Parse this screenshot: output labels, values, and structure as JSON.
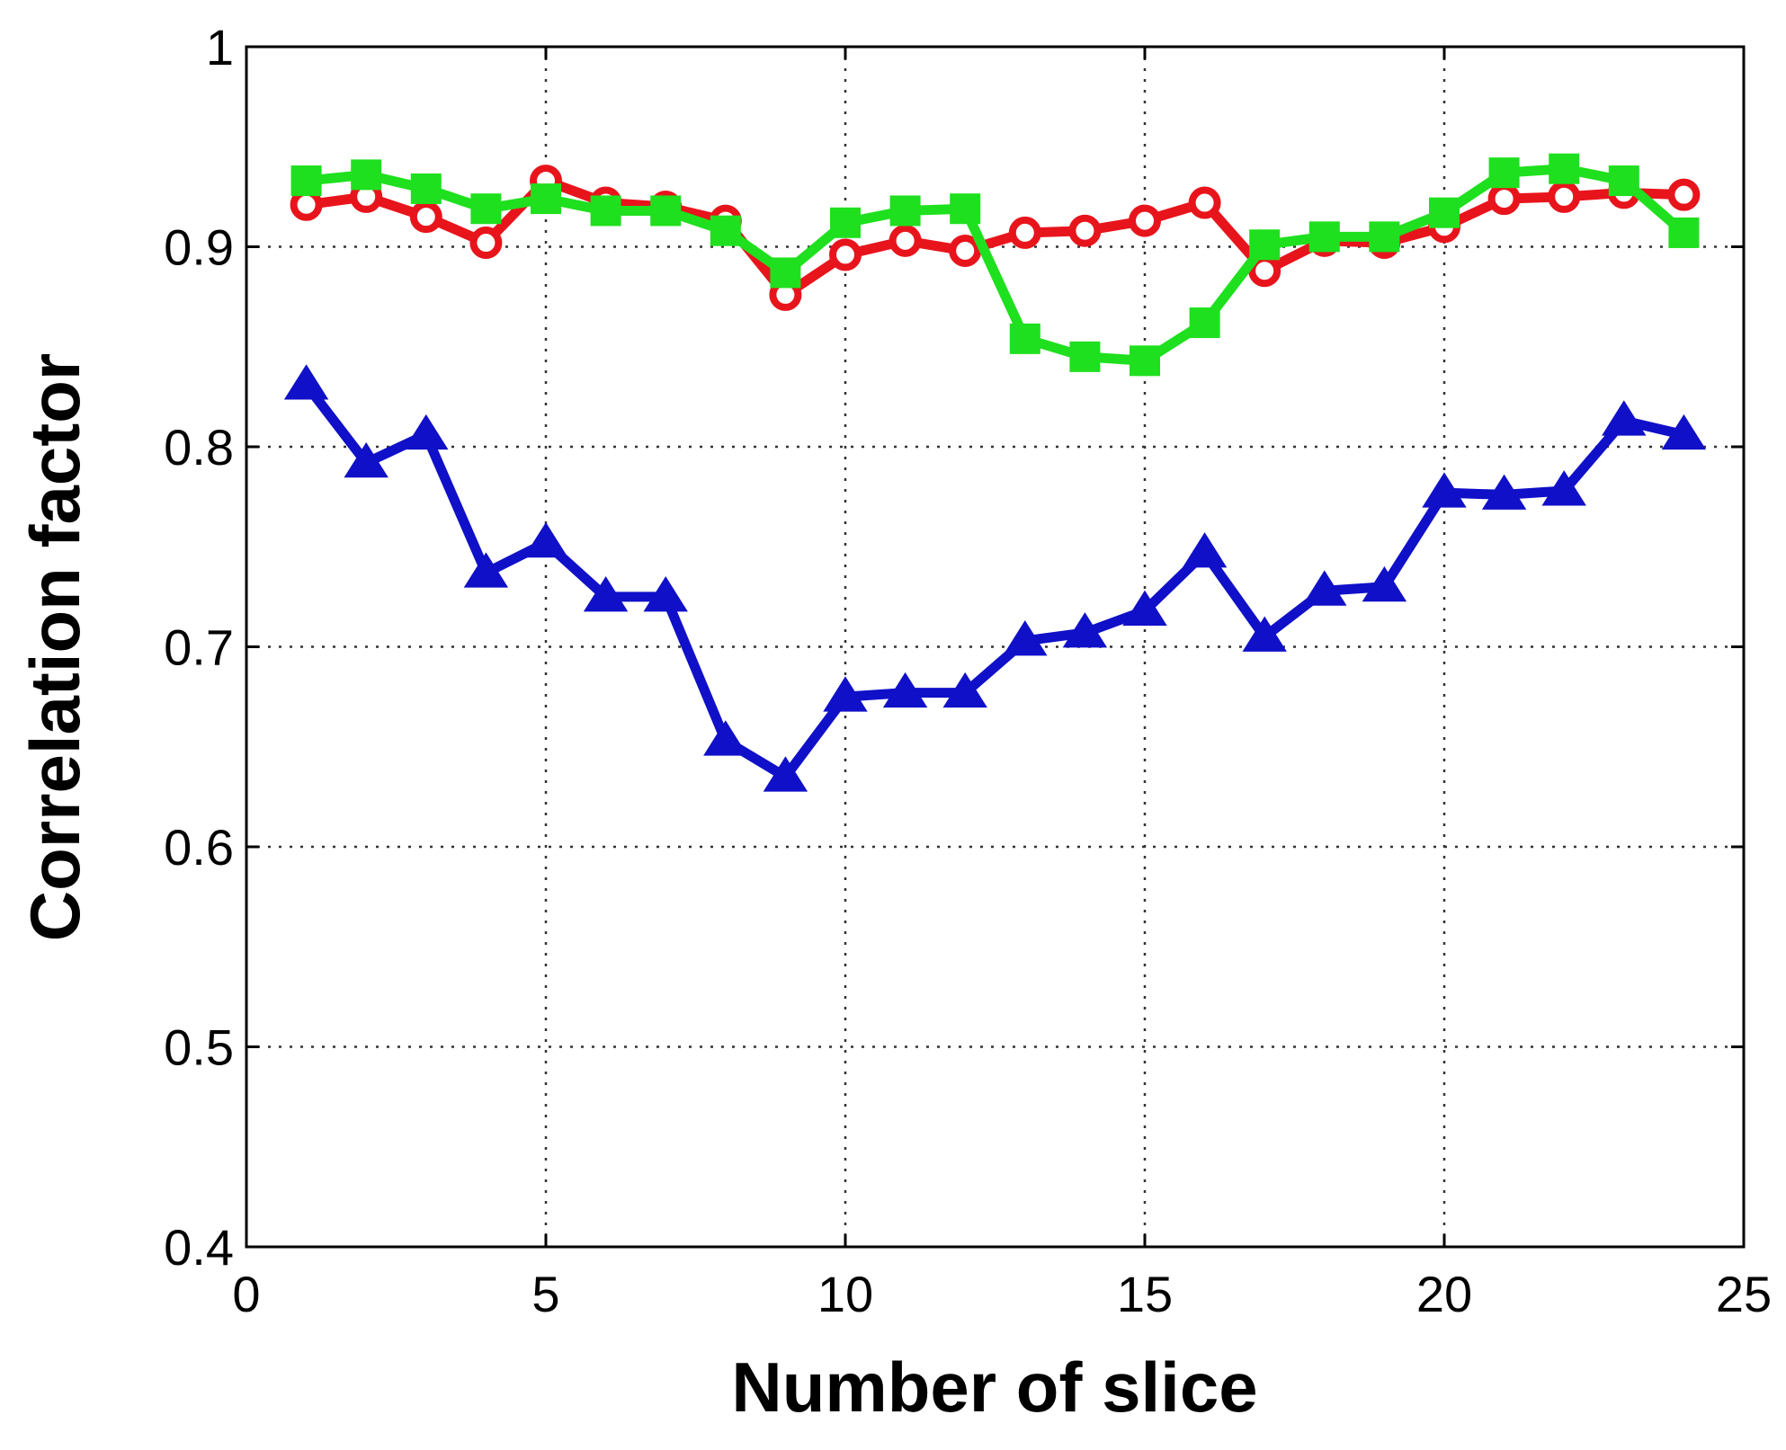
{
  "chart_data": {
    "type": "line",
    "title": "",
    "xlabel": "Number of slice",
    "ylabel": "Correlation factor",
    "xlim": [
      0,
      25
    ],
    "ylim": [
      0.4,
      1.0
    ],
    "xticks": [
      "0",
      "5",
      "10",
      "15",
      "20",
      "25"
    ],
    "yticks": [
      "0.4",
      "0.5",
      "0.6",
      "0.7",
      "0.8",
      "0.9",
      "1"
    ],
    "xtick_values": [
      0,
      5,
      10,
      15,
      20,
      25
    ],
    "ytick_values": [
      0.4,
      0.5,
      0.6,
      0.7,
      0.8,
      0.9,
      1.0
    ],
    "grid": true,
    "x": [
      1,
      2,
      3,
      4,
      5,
      6,
      7,
      8,
      9,
      10,
      11,
      12,
      13,
      14,
      15,
      16,
      17,
      18,
      19,
      20,
      21,
      22,
      23,
      24
    ],
    "series": [
      {
        "color": "#1010c8",
        "marker": "triangle",
        "values": [
          0.831,
          0.792,
          0.806,
          0.737,
          0.752,
          0.725,
          0.725,
          0.653,
          0.635,
          0.675,
          0.677,
          0.677,
          0.703,
          0.707,
          0.718,
          0.747,
          0.705,
          0.728,
          0.73,
          0.777,
          0.776,
          0.778,
          0.813,
          0.806
        ]
      },
      {
        "color": "#e8141c",
        "marker": "circle",
        "values": [
          0.921,
          0.925,
          0.915,
          0.902,
          0.933,
          0.922,
          0.92,
          0.913,
          0.876,
          0.896,
          0.903,
          0.898,
          0.907,
          0.908,
          0.913,
          0.922,
          0.888,
          0.903,
          0.902,
          0.91,
          0.924,
          0.925,
          0.927,
          0.926
        ]
      },
      {
        "color": "#1ee01e",
        "marker": "square",
        "values": [
          0.933,
          0.936,
          0.929,
          0.919,
          0.924,
          0.918,
          0.918,
          0.908,
          0.887,
          0.912,
          0.918,
          0.919,
          0.854,
          0.845,
          0.843,
          0.862,
          0.901,
          0.905,
          0.905,
          0.917,
          0.937,
          0.939,
          0.933,
          0.907
        ]
      }
    ]
  }
}
